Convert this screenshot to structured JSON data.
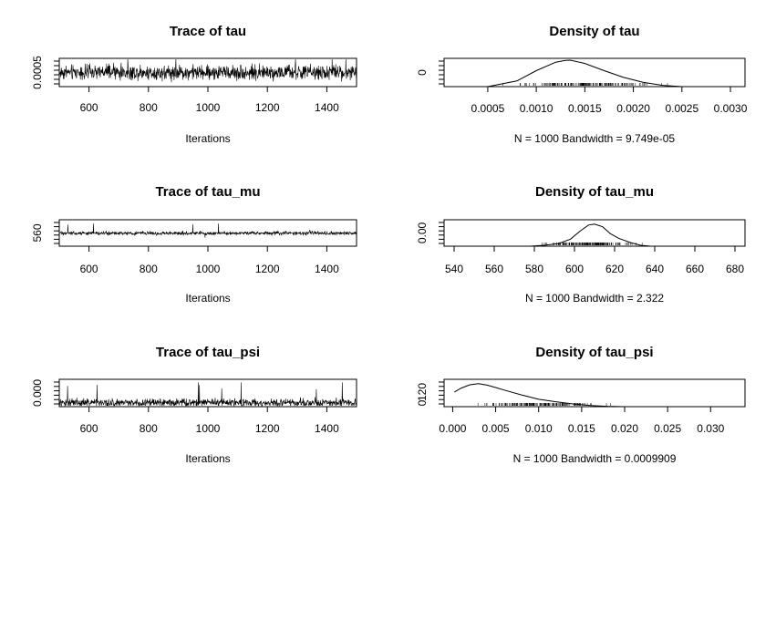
{
  "colors": {
    "line": "#000000",
    "background": "#ffffff"
  },
  "chart_data": [
    {
      "type": "line",
      "title": "Trace of tau",
      "xlabel": "Iterations",
      "ylabel": "",
      "xlim": [
        500,
        1500
      ],
      "ylim": [
        0.0003,
        0.0024
      ],
      "x_ticks": [
        "600",
        "800",
        "1000",
        "1200",
        "1400"
      ],
      "y_ticks": [
        "0.0005"
      ],
      "series": [
        {
          "x_start": 500,
          "x_end": 1500,
          "n": 1000,
          "center": 0.00135,
          "spread": 0.00045,
          "min": 0.0005,
          "max": 0.0024
        }
      ]
    },
    {
      "type": "area",
      "title": "Density of tau",
      "xlabel": "N = 1000   Bandwidth = 9.749e-05",
      "ylabel": "",
      "xlim": [
        5e-05,
        0.00315
      ],
      "ylim": [
        0,
        1100
      ],
      "x_ticks": [
        "0.0005",
        "0.0010",
        "0.0015",
        "0.0020",
        "0.0025",
        "0.0030"
      ],
      "y_ticks": [
        "0"
      ],
      "density": {
        "x": [
          0.0005,
          0.0008,
          0.001,
          0.0012,
          0.0013,
          0.00135,
          0.0015,
          0.0017,
          0.0019,
          0.0021,
          0.0023,
          0.0025
        ],
        "y": [
          0,
          220,
          620,
          950,
          1020,
          1030,
          900,
          620,
          360,
          170,
          50,
          0
        ]
      }
    },
    {
      "type": "line",
      "title": "Trace of tau_mu",
      "xlabel": "Iterations",
      "ylabel": "",
      "xlim": [
        500,
        1500
      ],
      "ylim": [
        540,
        680
      ],
      "x_ticks": [
        "600",
        "800",
        "1000",
        "1200",
        "1400"
      ],
      "y_ticks": [
        "560"
      ],
      "series": [
        {
          "x_start": 500,
          "x_end": 1500,
          "n": 1000,
          "center": 609,
          "spread": 8,
          "min": 578,
          "max": 660
        }
      ]
    },
    {
      "type": "area",
      "title": "Density of tau_mu",
      "xlabel": "N = 1000   Bandwidth = 2.322",
      "ylabel": "",
      "xlim": [
        535,
        685
      ],
      "ylim": [
        0,
        0.06
      ],
      "x_ticks": [
        "540",
        "560",
        "580",
        "600",
        "620",
        "640",
        "660",
        "680"
      ],
      "y_ticks": [
        "0.00"
      ],
      "density": {
        "x": [
          578,
          585,
          592,
          598,
          603,
          607,
          610,
          614,
          618,
          622,
          628,
          633,
          638
        ],
        "y": [
          0,
          0.002,
          0.006,
          0.016,
          0.035,
          0.048,
          0.05,
          0.044,
          0.028,
          0.018,
          0.008,
          0.002,
          0
        ]
      }
    },
    {
      "type": "line",
      "title": "Trace of tau_psi",
      "xlabel": "Iterations",
      "ylabel": "",
      "xlim": [
        500,
        1500
      ],
      "ylim": [
        -0.001,
        0.034
      ],
      "x_ticks": [
        "600",
        "800",
        "1000",
        "1200",
        "1400"
      ],
      "y_ticks": [
        "0.000"
      ],
      "series": [
        {
          "x_start": 500,
          "x_end": 1500,
          "n": 1000,
          "center": 0.004,
          "spread": 0.004,
          "min": 0.0001,
          "max": 0.03
        }
      ]
    },
    {
      "type": "area",
      "title": "Density of tau_psi",
      "xlabel": "N = 1000   Bandwidth = 0.0009909",
      "ylabel": "",
      "xlim": [
        -0.001,
        0.034
      ],
      "ylim": [
        0,
        140
      ],
      "x_ticks": [
        "0.000",
        "0.005",
        "0.010",
        "0.015",
        "0.020",
        "0.025",
        "0.030"
      ],
      "y_ticks": [
        "0",
        "120"
      ],
      "density": {
        "x": [
          0.0002,
          0.001,
          0.002,
          0.003,
          0.004,
          0.005,
          0.006,
          0.008,
          0.01,
          0.012,
          0.014,
          0.016,
          0.018,
          0.02
        ],
        "y": [
          75,
          95,
          112,
          118,
          110,
          98,
          85,
          60,
          38,
          25,
          14,
          6,
          2,
          0
        ]
      }
    }
  ]
}
